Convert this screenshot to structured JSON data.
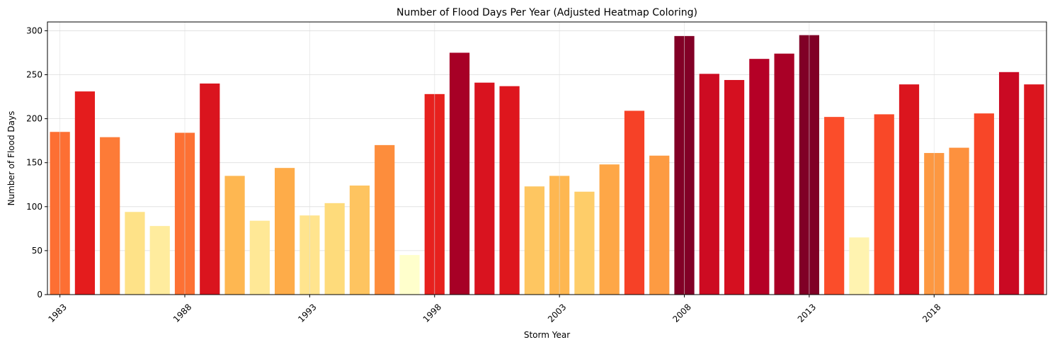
{
  "chart_data": {
    "type": "bar",
    "title": "Number of Flood Days Per Year (Adjusted Heatmap Coloring)",
    "xlabel": "Storm Year",
    "ylabel": "Number of Flood Days",
    "ylim": [
      0,
      310
    ],
    "yticks": [
      0,
      50,
      100,
      150,
      200,
      250,
      300
    ],
    "xtick_labels": [
      "1983",
      "1988",
      "1993",
      "1998",
      "2003",
      "2008",
      "2013",
      "2018"
    ],
    "grid": true,
    "colormap": "YlOrRd",
    "categories": [
      "1983",
      "1984",
      "1985",
      "1986",
      "1987",
      "1988",
      "1989",
      "1990",
      "1991",
      "1992",
      "1993",
      "1994",
      "1995",
      "1996",
      "1997",
      "1998",
      "1999",
      "2000",
      "2001",
      "2002",
      "2003",
      "2004",
      "2005",
      "2006",
      "2007",
      "2008",
      "2009",
      "2010",
      "2011",
      "2012",
      "2013",
      "2014",
      "2015",
      "2016",
      "2017",
      "2018",
      "2019",
      "2020",
      "2021",
      "2022"
    ],
    "values": [
      185,
      231,
      179,
      94,
      78,
      184,
      240,
      135,
      84,
      144,
      90,
      104,
      124,
      170,
      45,
      228,
      275,
      241,
      237,
      123,
      135,
      117,
      148,
      209,
      158,
      294,
      251,
      244,
      268,
      274,
      295,
      202,
      65,
      205,
      239,
      161,
      167,
      206,
      253,
      239
    ]
  }
}
